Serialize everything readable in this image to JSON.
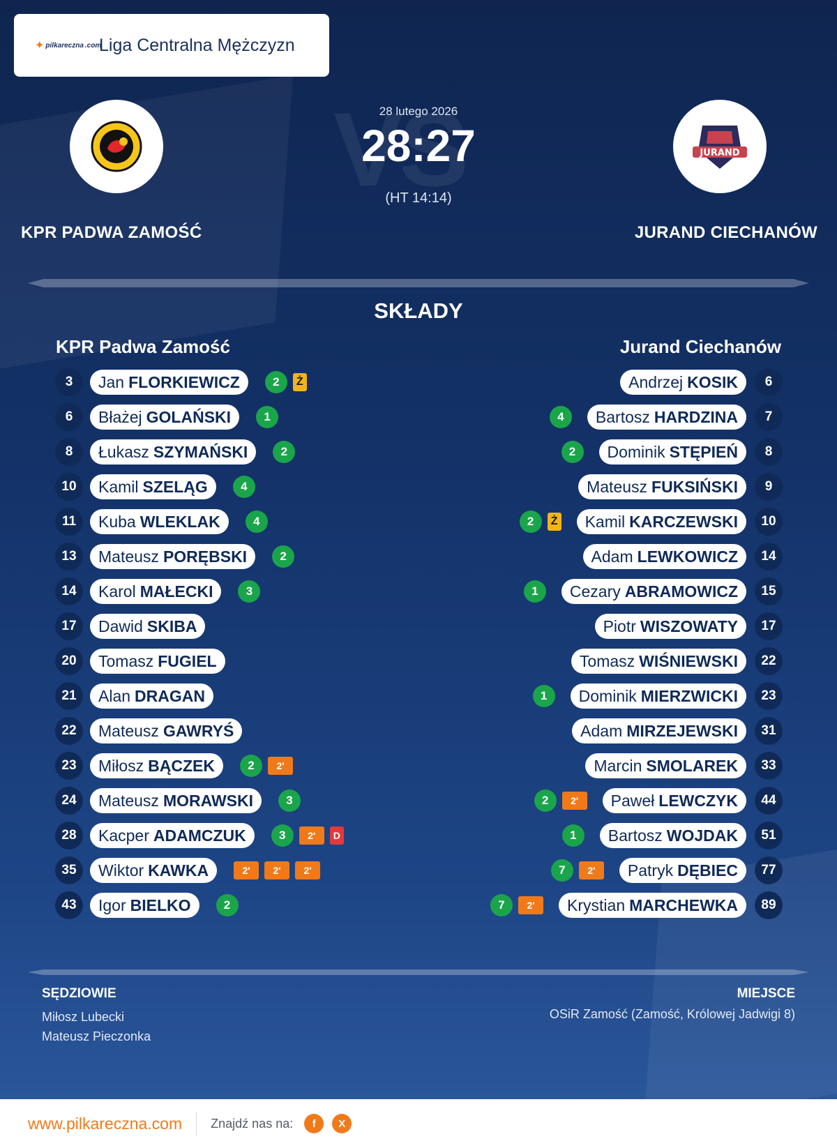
{
  "league": {
    "name": "Liga Centralna Mężczyzn",
    "logo_text": "pilkareczna",
    "logo_sub": ".com"
  },
  "match": {
    "date": "28 lutego 2026",
    "score": "28:27",
    "halftime": "(HT 14:14)",
    "vs_watermark": "VS"
  },
  "home_team": {
    "name": "KPR PADWA ZAMOŚĆ",
    "short": "KPR Padwa Zamość",
    "logo_icon": "padwa-zamosc-handball-crest"
  },
  "away_team": {
    "name": "JURAND CIECHANÓW",
    "short": "Jurand Ciechanów",
    "logo_icon": "jurand-crest",
    "logo_text": "JURAND"
  },
  "section_title": "SKŁADY",
  "home_players": [
    {
      "num": "3",
      "first": "Jan",
      "last": "FLORKIEWICZ",
      "events": [
        {
          "t": "goal",
          "v": "2"
        },
        {
          "t": "yellow",
          "v": "Ż"
        }
      ]
    },
    {
      "num": "6",
      "first": "Błażej",
      "last": "GOLAŃSKI",
      "events": [
        {
          "t": "goal",
          "v": "1"
        }
      ]
    },
    {
      "num": "8",
      "first": "Łukasz",
      "last": "SZYMAŃSKI",
      "events": [
        {
          "t": "goal",
          "v": "2"
        }
      ]
    },
    {
      "num": "10",
      "first": "Kamil",
      "last": "SZELĄG",
      "events": [
        {
          "t": "goal",
          "v": "4"
        }
      ]
    },
    {
      "num": "11",
      "first": "Kuba",
      "last": "WLEKLAK",
      "events": [
        {
          "t": "goal",
          "v": "4"
        }
      ]
    },
    {
      "num": "13",
      "first": "Mateusz",
      "last": "PORĘBSKI",
      "events": [
        {
          "t": "goal",
          "v": "2"
        }
      ]
    },
    {
      "num": "14",
      "first": "Karol",
      "last": "MAŁECKI",
      "events": [
        {
          "t": "goal",
          "v": "3"
        }
      ]
    },
    {
      "num": "17",
      "first": "Dawid",
      "last": "SKIBA",
      "events": []
    },
    {
      "num": "20",
      "first": "Tomasz",
      "last": "FUGIEL",
      "events": []
    },
    {
      "num": "21",
      "first": "Alan",
      "last": "DRAGAN",
      "events": []
    },
    {
      "num": "22",
      "first": "Mateusz",
      "last": "GAWRYŚ",
      "events": []
    },
    {
      "num": "23",
      "first": "Miłosz",
      "last": "BĄCZEK",
      "events": [
        {
          "t": "goal",
          "v": "2"
        },
        {
          "t": "suspend",
          "v": "2'"
        }
      ]
    },
    {
      "num": "24",
      "first": "Mateusz",
      "last": "MORAWSKI",
      "events": [
        {
          "t": "goal",
          "v": "3"
        }
      ]
    },
    {
      "num": "28",
      "first": "Kacper",
      "last": "ADAMCZUK",
      "events": [
        {
          "t": "goal",
          "v": "3"
        },
        {
          "t": "suspend",
          "v": "2'"
        },
        {
          "t": "red",
          "v": "D"
        }
      ]
    },
    {
      "num": "35",
      "first": "Wiktor",
      "last": "KAWKA",
      "events": [
        {
          "t": "suspend",
          "v": "2'"
        },
        {
          "t": "suspend",
          "v": "2'"
        },
        {
          "t": "suspend",
          "v": "2'"
        }
      ]
    },
    {
      "num": "43",
      "first": "Igor",
      "last": "BIELKO",
      "events": [
        {
          "t": "goal",
          "v": "2"
        }
      ]
    }
  ],
  "away_players": [
    {
      "num": "6",
      "first": "Andrzej",
      "last": "KOSIK",
      "events": []
    },
    {
      "num": "7",
      "first": "Bartosz",
      "last": "HARDZINA",
      "events": [
        {
          "t": "goal",
          "v": "4"
        }
      ]
    },
    {
      "num": "8",
      "first": "Dominik",
      "last": "STĘPIEŃ",
      "events": [
        {
          "t": "goal",
          "v": "2"
        }
      ]
    },
    {
      "num": "9",
      "first": "Mateusz",
      "last": "FUKSIŃSKI",
      "events": []
    },
    {
      "num": "10",
      "first": "Kamil",
      "last": "KARCZEWSKI",
      "events": [
        {
          "t": "goal",
          "v": "2"
        },
        {
          "t": "yellow",
          "v": "Ż"
        }
      ]
    },
    {
      "num": "14",
      "first": "Adam",
      "last": "LEWKOWICZ",
      "events": []
    },
    {
      "num": "15",
      "first": "Cezary",
      "last": "ABRAMOWICZ",
      "events": [
        {
          "t": "goal",
          "v": "1"
        }
      ]
    },
    {
      "num": "17",
      "first": "Piotr",
      "last": "WISZOWATY",
      "events": []
    },
    {
      "num": "22",
      "first": "Tomasz",
      "last": "WIŚNIEWSKI",
      "events": []
    },
    {
      "num": "23",
      "first": "Dominik",
      "last": "MIERZWICKI",
      "events": [
        {
          "t": "goal",
          "v": "1"
        }
      ]
    },
    {
      "num": "31",
      "first": "Adam",
      "last": "MIRZEJEWSKI",
      "events": []
    },
    {
      "num": "33",
      "first": "Marcin",
      "last": "SMOLAREK",
      "events": []
    },
    {
      "num": "44",
      "first": "Paweł",
      "last": "LEWCZYK",
      "events": [
        {
          "t": "goal",
          "v": "2"
        },
        {
          "t": "suspend",
          "v": "2'"
        }
      ]
    },
    {
      "num": "51",
      "first": "Bartosz",
      "last": "WOJDAK",
      "events": [
        {
          "t": "goal",
          "v": "1"
        }
      ]
    },
    {
      "num": "77",
      "first": "Patryk",
      "last": "DĘBIEC",
      "events": [
        {
          "t": "goal",
          "v": "7"
        },
        {
          "t": "suspend",
          "v": "2'"
        }
      ]
    },
    {
      "num": "89",
      "first": "Krystian",
      "last": "MARCHEWKA",
      "events": [
        {
          "t": "goal",
          "v": "7"
        },
        {
          "t": "suspend",
          "v": "2'"
        }
      ]
    }
  ],
  "referees": {
    "label": "SĘDZIOWIE",
    "names": [
      "Miłosz Lubecki",
      "Mateusz Pieczonka"
    ]
  },
  "venue": {
    "label": "MIEJSCE",
    "text": "OSiR Zamość (Zamość, Królowej Jadwigi 8)"
  },
  "footer": {
    "site": "www.pilkareczna.com",
    "find_us": "Znajdź nas na:",
    "social": [
      {
        "icon": "facebook-icon",
        "glyph": "f"
      },
      {
        "icon": "x-icon",
        "glyph": "X"
      }
    ]
  },
  "colors": {
    "accent": "#f07a1a",
    "goal": "#1aa54a",
    "yellow_card": "#f2b418",
    "red_card": "#e23a3a",
    "navy": "#102a58"
  }
}
